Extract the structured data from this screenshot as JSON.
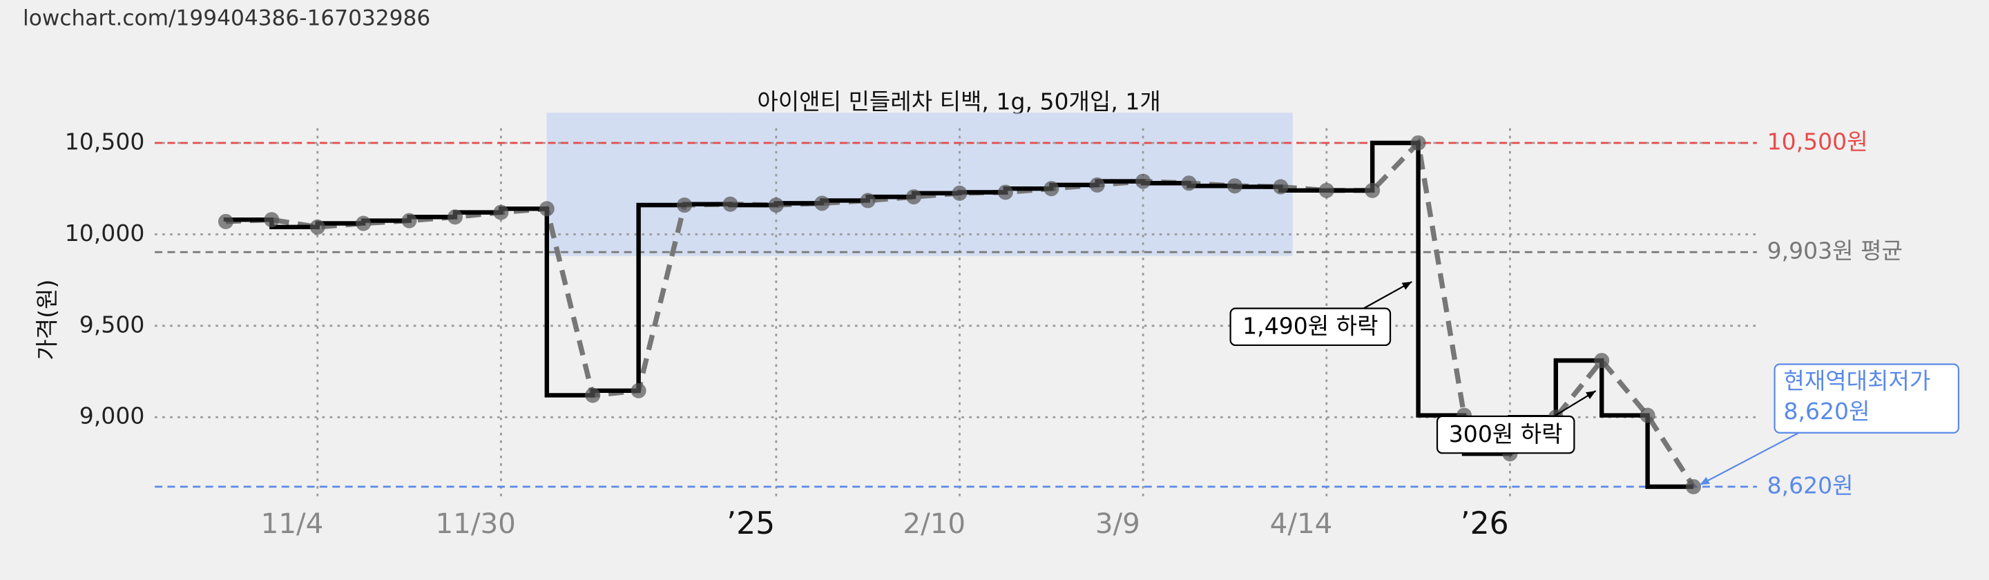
{
  "chart_data": {
    "type": "line",
    "source": "lowchart.com/199404386-167032986",
    "title": "아이앤티 민들레차 티백, 1g, 50개입, 1개",
    "y_label": "가격(원)",
    "categories": [
      null,
      null,
      "11/4",
      null,
      null,
      null,
      "11/30",
      null,
      null,
      null,
      null,
      null,
      "’25",
      null,
      null,
      null,
      "2/10",
      null,
      null,
      null,
      "3/9",
      null,
      null,
      null,
      "4/14",
      null,
      null,
      null,
      "’26",
      null,
      null,
      null,
      null
    ],
    "series": [
      {
        "color": "#000000",
        "values": [
          10070,
          10080,
          10040,
          10060,
          10075,
          10095,
          10120,
          10140,
          9120,
          9145,
          10160,
          10165,
          10160,
          10170,
          10185,
          10205,
          10225,
          10230,
          10250,
          10270,
          10290,
          10280,
          10265,
          10260,
          10240,
          10240,
          10500,
          9010,
          8800,
          9000,
          9310,
          9010,
          8620
        ]
      }
    ],
    "ylim": [
      8540,
      10650
    ],
    "yticks": [
      {
        "value": 9000,
        "label": "9,000"
      },
      {
        "value": 9500,
        "label": "9,500"
      },
      {
        "value": 10000,
        "label": "10,000"
      },
      {
        "value": 10500,
        "label": "10,500"
      }
    ],
    "grid": true,
    "reference_lines": [
      {
        "value": 10500,
        "label": "10,500원",
        "color": "#e84a4a"
      },
      {
        "value": 9903,
        "label": "9,903원 평균",
        "color": "#777777"
      },
      {
        "value": 8620,
        "label": "8,620원",
        "color": "#5a8ae8"
      }
    ],
    "annotations": [
      {
        "text": "1,490원 하락"
      },
      {
        "text": "300원 하락"
      },
      {
        "text": "현재역대최저가",
        "text2": "8,620원"
      }
    ]
  }
}
